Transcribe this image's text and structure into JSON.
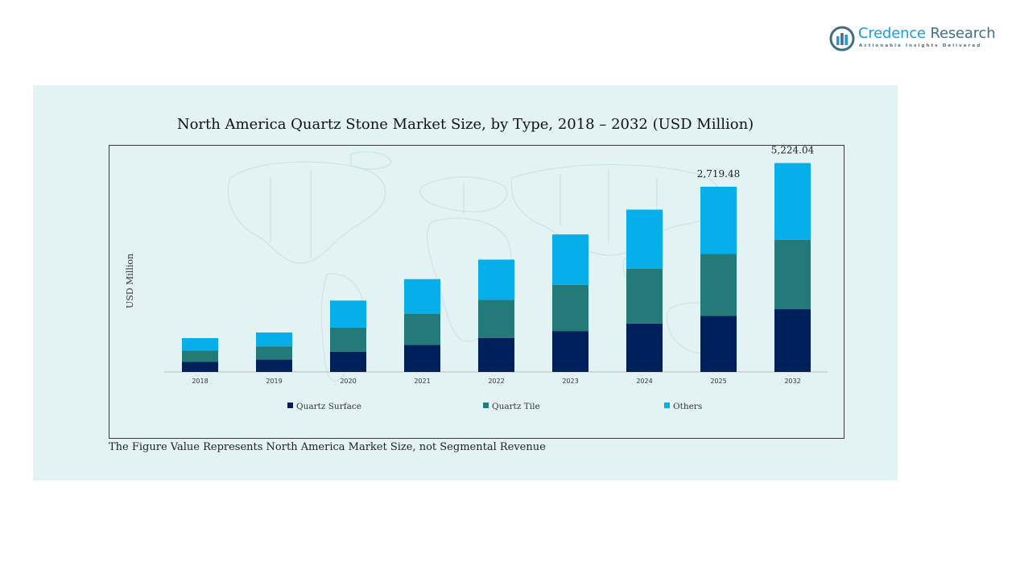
{
  "brand": {
    "name_part1": "Credence",
    "name_part2": "Research",
    "tagline": "Actionable Insights Delivered",
    "colors": {
      "primary": "#1d9ad6",
      "secondary": "#3f6f86"
    }
  },
  "footnote": "The Figure Value Represents North America Market Size, not Segmental Revenue",
  "chart_data": {
    "type": "bar",
    "stacked": true,
    "title": "North America Quartz Stone Market Size, by Type, 2018 – 2032 (USD Million)",
    "ylabel": "USD Million",
    "xlabel": "",
    "categories": [
      "2018",
      "2019",
      "2020",
      "2021",
      "2022",
      "2023",
      "2024",
      "2025",
      "2032"
    ],
    "series": [
      {
        "name": "Quartz Surface",
        "color": "#00205b",
        "values": [
          270,
          330,
          540,
          720,
          900,
          1090,
          1290,
          1490,
          1670
        ]
      },
      {
        "name": "Quartz Tile",
        "color": "#237a78",
        "values": [
          300,
          350,
          640,
          830,
          1020,
          1230,
          1460,
          1650,
          1850
        ]
      },
      {
        "name": "Others",
        "color": "#06aeea",
        "values": [
          330,
          370,
          720,
          920,
          1070,
          1340,
          1570,
          1790,
          2040
        ]
      }
    ],
    "data_labels": [
      {
        "category": "2025",
        "text": "2,719.48"
      },
      {
        "category": "2032",
        "text": "5,224.04"
      }
    ],
    "ylim": [
      0,
      6000
    ],
    "grid": false,
    "legend_position": "bottom"
  }
}
